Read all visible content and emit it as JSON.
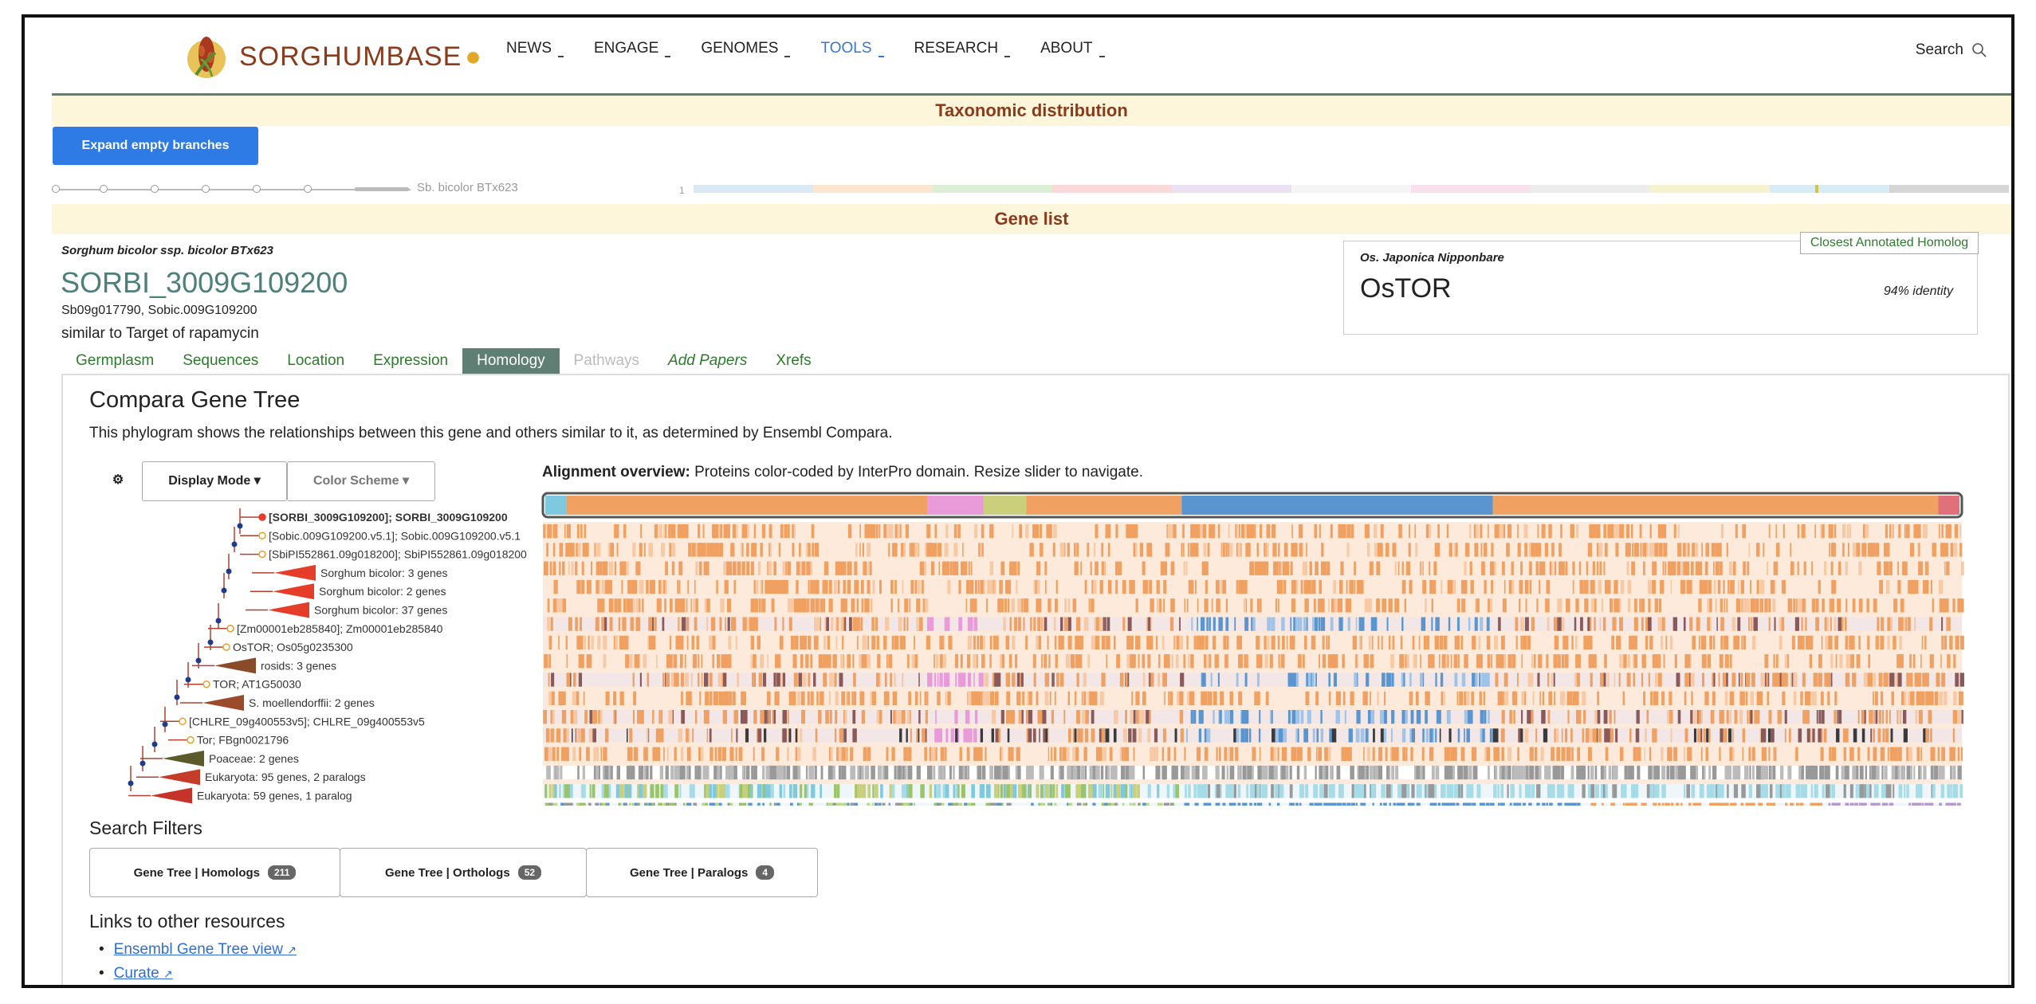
{
  "header": {
    "brand": "SORGHUMBASE",
    "nav": [
      {
        "label": "NEWS",
        "active": false
      },
      {
        "label": "ENGAGE",
        "active": false
      },
      {
        "label": "GENOMES",
        "active": false
      },
      {
        "label": "TOOLS",
        "active": true
      },
      {
        "label": "RESEARCH",
        "active": false
      },
      {
        "label": "ABOUT",
        "active": false
      }
    ],
    "search_label": "Search"
  },
  "taxonomy": {
    "title": "Taxonomic distribution",
    "expand_button": "Expand empty branches",
    "branch_label": "Sb. bicolor BTx623",
    "count_label": "1"
  },
  "gene_list": {
    "title": "Gene list",
    "species": "Sorghum bicolor ssp. bicolor BTx623",
    "gene_id": "SORBI_3009G109200",
    "synonyms": "Sb09g017790, Sobic.009G109200",
    "description": "similar to Target of rapamycin",
    "homolog": {
      "tag": "Closest Annotated Homolog",
      "species": "Os. Japonica Nipponbare",
      "name": "OsTOR",
      "identity": "94% identity"
    },
    "tabs": [
      {
        "label": "Germplasm",
        "state": "normal"
      },
      {
        "label": "Sequences",
        "state": "normal"
      },
      {
        "label": "Location",
        "state": "normal"
      },
      {
        "label": "Expression",
        "state": "normal"
      },
      {
        "label": "Homology",
        "state": "active"
      },
      {
        "label": "Pathways",
        "state": "disabled"
      },
      {
        "label": "Add Papers",
        "state": "italic"
      },
      {
        "label": "Xrefs",
        "state": "normal"
      }
    ]
  },
  "compara": {
    "title": "Compara Gene Tree",
    "description": "This phylogram shows the relationships between this gene and others similar to it, as determined by Ensembl Compara.",
    "display_mode": "Display Mode",
    "color_scheme": "Color Scheme",
    "align_title_bold": "Alignment overview:",
    "align_title_rest": " Proteins color-coded by InterPro domain. Resize slider to navigate.",
    "tree_rows": [
      {
        "label": "[SORBI_3009G109200]; SORBI_3009G109200",
        "bold": true
      },
      {
        "label": "[Sobic.009G109200.v5.1]; Sobic.009G109200.v5.1",
        "bold": false
      },
      {
        "label": "[SbiPI552861.09g018200]; SbiPI552861.09g018200",
        "bold": false
      },
      {
        "label": "Sorghum bicolor: 3 genes",
        "bold": false
      },
      {
        "label": "Sorghum bicolor: 2 genes",
        "bold": false
      },
      {
        "label": "Sorghum bicolor: 37 genes",
        "bold": false
      },
      {
        "label": "[Zm00001eb285840]; Zm00001eb285840",
        "bold": false
      },
      {
        "label": "OsTOR; Os05g0235300",
        "bold": false
      },
      {
        "label": "rosids: 3 genes",
        "bold": false
      },
      {
        "label": "TOR; AT1G50030",
        "bold": false
      },
      {
        "label": "S. moellendorffii: 2 genes",
        "bold": false
      },
      {
        "label": "[CHLRE_09g400553v5]; CHLRE_09g400553v5",
        "bold": false
      },
      {
        "label": "Tor; FBgn0021796",
        "bold": false
      },
      {
        "label": "Poaceae: 2 genes",
        "bold": false
      },
      {
        "label": "Eukaryota: 95 genes, 2 paralogs",
        "bold": false
      },
      {
        "label": "Eukaryota: 59 genes, 1 paralog",
        "bold": false
      }
    ],
    "search_filters_title": "Search Filters",
    "filters": [
      {
        "label": "Gene Tree | Homologs",
        "count": "211"
      },
      {
        "label": "Gene Tree | Orthologs",
        "count": "52"
      },
      {
        "label": "Gene Tree | Paralogs",
        "count": "4"
      }
    ],
    "links_title": "Links to other resources",
    "links": [
      "Ensembl Gene Tree view",
      "Curate"
    ]
  },
  "colors": {
    "brand": "#8a3b1b",
    "accent_blue": "#2f7be5",
    "tab_active": "#5f7f74",
    "domain_orange": "#f0a060",
    "domain_blue": "#5b95d0",
    "domain_pink": "#e99ad9",
    "domain_green": "#9bc46a"
  }
}
